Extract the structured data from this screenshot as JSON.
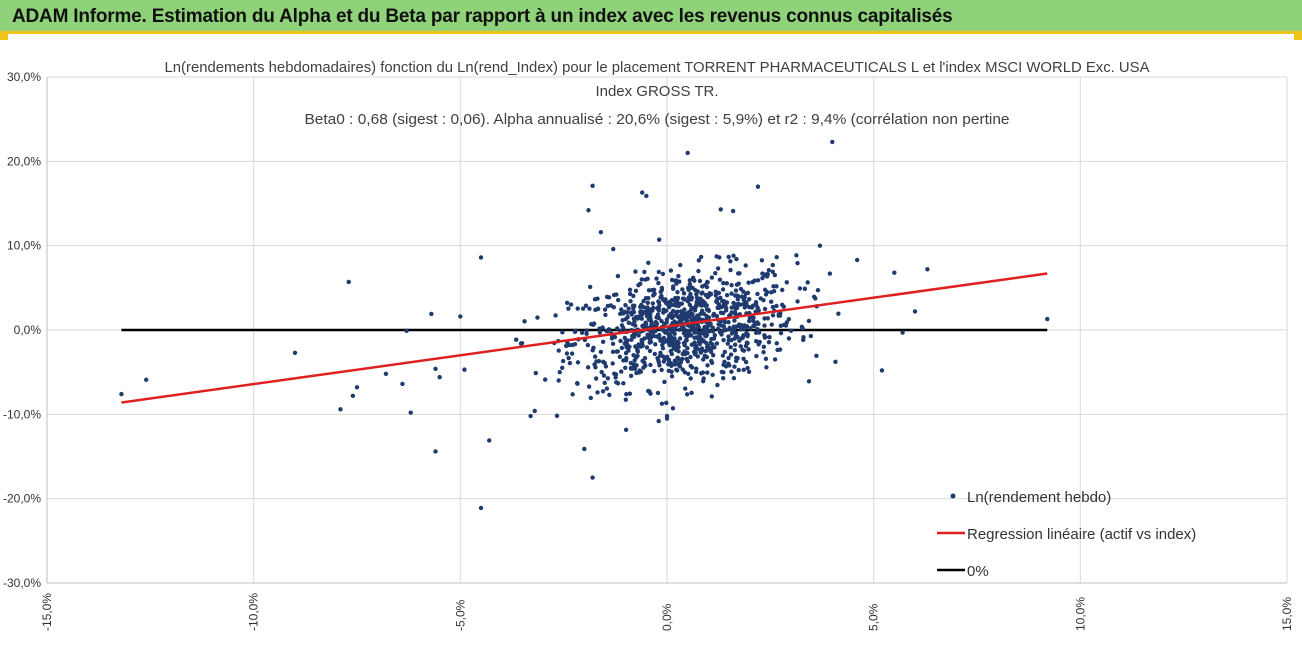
{
  "header": {
    "title": "ADAM Informe. Estimation du Alpha et du Beta par rapport à un index avec les revenus connus capitalisés"
  },
  "colors": {
    "banner": "#8fd27a",
    "banner_border": "#f0c419",
    "points": "#1f3a6e",
    "regression": "#e02020",
    "zero_line": "#000000",
    "grid": "#d9d9d9"
  },
  "chart_data": {
    "type": "scatter",
    "title_lines": [
      "Ln(rendements hebdomadaires) fonction du Ln(rend_Index) pour le placement TORRENT PHARMACEUTICALS L et l'index MSCI WORLD Exc. USA",
      "Index GROSS TR.",
      "Beta0 : 0,68 (sigest : 0,06). Alpha annualisé : 20,6% (sigest : 5,9%) et r2 : 9,4% (corrélation non pertine"
    ],
    "xlim": [
      -15,
      15
    ],
    "ylim": [
      -30,
      30
    ],
    "x_ticks": [
      "-15,0%",
      "-10,0%",
      "-5,0%",
      "0,0%",
      "5,0%",
      "10,0%",
      "15,0%"
    ],
    "x_tick_values": [
      -15,
      -10,
      -5,
      0,
      5,
      10,
      15
    ],
    "y_ticks": [
      "30,0%",
      "20,0%",
      "10,0%",
      "0,0%",
      "-10,0%",
      "-20,0%",
      "-30,0%"
    ],
    "y_tick_values": [
      30,
      20,
      10,
      0,
      -10,
      -20,
      -30
    ],
    "legend": [
      {
        "name": "Ln(rendement hebdo)",
        "kind": "marker"
      },
      {
        "name": "Regression linéaire (actif vs index)",
        "kind": "line",
        "color": "#e02020"
      },
      {
        "name": "0%",
        "kind": "line",
        "color": "#000000"
      }
    ],
    "legend_position": "bottom-right",
    "regression": {
      "x": [
        -13.2,
        9.2
      ],
      "y": [
        -8.6,
        6.7
      ],
      "beta": 0.68
    },
    "zero_line": {
      "x": [
        -13.2,
        9.2
      ],
      "y": [
        0,
        0
      ]
    },
    "scatter_series": {
      "name": "Ln(rendement hebdo)",
      "x": [
        -13.2,
        -12.6,
        -9.0,
        -7.9,
        -7.7,
        -7.5,
        -7.6,
        -6.8,
        -6.4,
        -6.3,
        -6.2,
        -5.7,
        -5.6,
        -5.6,
        -5.5,
        -5.0,
        -4.9,
        -4.5,
        -4.5,
        -4.3,
        0.5,
        4.0,
        -0.6,
        -0.5,
        -1.8,
        2.2,
        1.3,
        1.6,
        -1.3,
        -1.9,
        -1.6,
        5.5,
        6.3,
        6.0,
        9.2,
        3.7,
        4.6,
        5.2,
        5.7,
        -2.0,
        -1.8,
        0.0,
        0.0,
        -0.2,
        -3.3,
        -3.2
      ],
      "y": [
        -7.6,
        -5.9,
        -2.7,
        -9.4,
        5.7,
        -6.8,
        -7.8,
        -5.2,
        -6.4,
        -0.1,
        -9.8,
        1.9,
        -4.6,
        -14.4,
        -5.6,
        1.6,
        -4.7,
        8.6,
        -21.1,
        -13.1,
        21.0,
        22.3,
        16.3,
        15.9,
        17.1,
        17.0,
        14.3,
        14.1,
        9.6,
        14.2,
        11.6,
        6.8,
        7.2,
        2.2,
        1.3,
        10.0,
        8.3,
        -4.8,
        -0.3,
        -14.1,
        -17.5,
        -10.2,
        -10.5,
        -10.8,
        -10.2,
        -9.6
      ]
    },
    "cluster": {
      "n": 1000,
      "x_mean": 0.4,
      "x_sd": 1.35,
      "y_mean": 0.3,
      "y_sd": 3.3,
      "beta": 0.68,
      "seed": 12345
    }
  }
}
